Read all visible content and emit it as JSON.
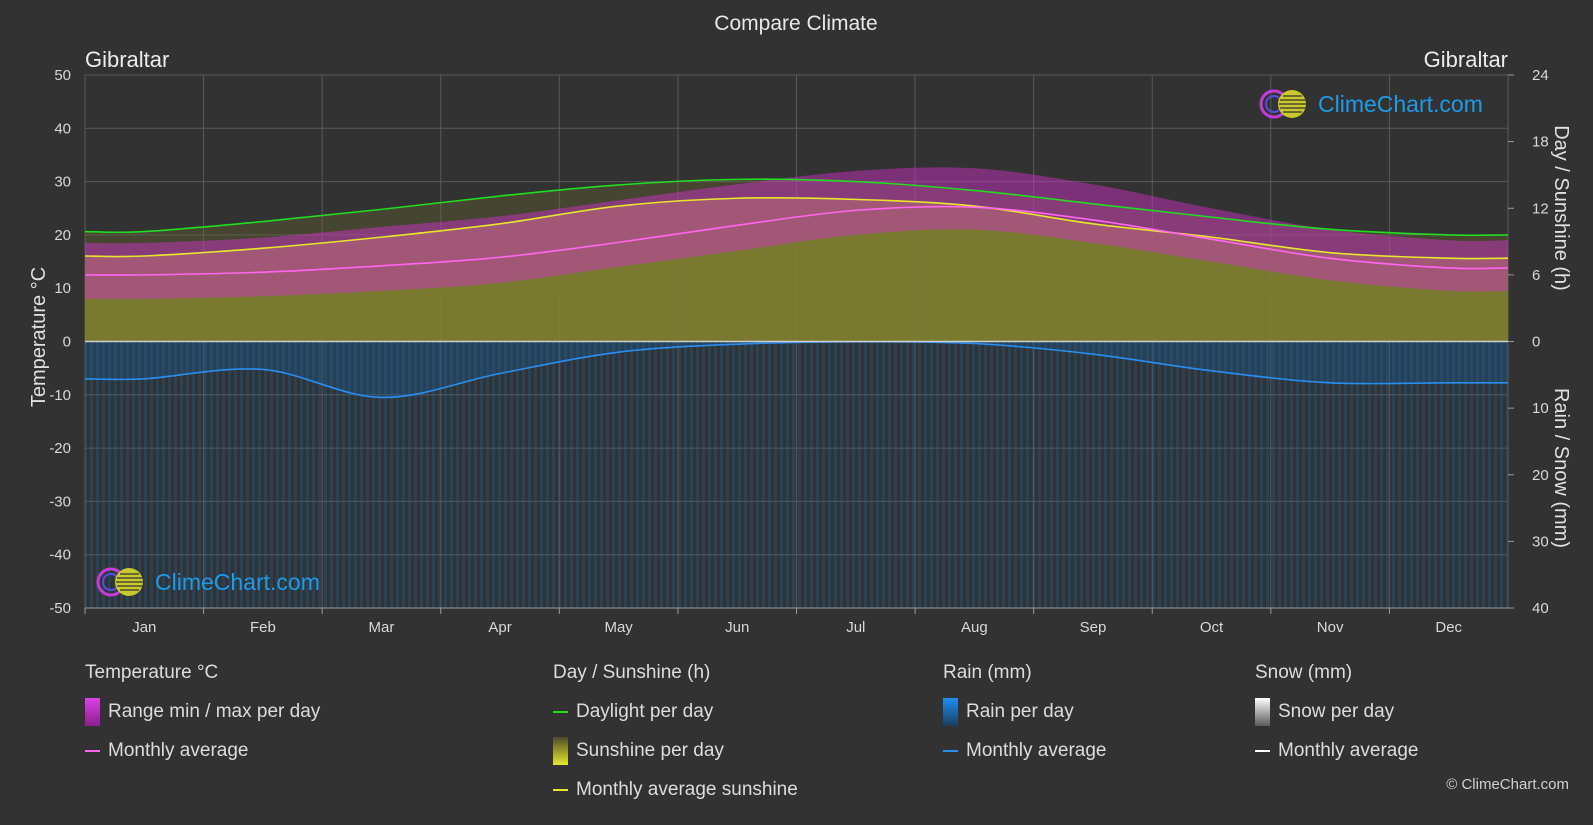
{
  "title": "Compare Climate",
  "location_left": "Gibraltar",
  "location_right": "Gibraltar",
  "copyright": "© ClimeChart.com",
  "logo_text": "ClimeChart.com",
  "colors": {
    "background": "#323232",
    "temp_range": "#d62fcf",
    "temp_avg": "#ff66f0",
    "daylight": "#22dd22",
    "sunshine_fill": "#8f8f2e",
    "sunshine_avg": "#e6e62e",
    "rain": "#1e7fd0",
    "rain_avg": "#2a8ef0",
    "snow_avg": "#ffffff"
  },
  "legend": {
    "temperature": {
      "title": "Temperature °C",
      "range_label": "Range min / max per day",
      "avg_label": "Monthly average"
    },
    "sun": {
      "title": "Day / Sunshine (h)",
      "daylight_label": "Daylight per day",
      "sunshine_label": "Sunshine per day",
      "avg_label": "Monthly average sunshine"
    },
    "rain": {
      "title": "Rain (mm)",
      "per_day_label": "Rain per day",
      "avg_label": "Monthly average"
    },
    "snow": {
      "title": "Snow (mm)",
      "per_day_label": "Snow per day",
      "avg_label": "Monthly average"
    }
  },
  "chart_data": {
    "type": "line",
    "categories": [
      "Jan",
      "Feb",
      "Mar",
      "Apr",
      "May",
      "Jun",
      "Jul",
      "Aug",
      "Sep",
      "Oct",
      "Nov",
      "Dec"
    ],
    "axes": {
      "left": {
        "label": "Temperature °C",
        "ylim": [
          -50,
          50
        ],
        "ticks": [
          50,
          40,
          30,
          20,
          10,
          0,
          -10,
          -20,
          -30,
          -40,
          -50
        ]
      },
      "right_top": {
        "label": "Day / Sunshine (h)",
        "ylim": [
          0,
          24
        ],
        "ticks": [
          24,
          18,
          12,
          6,
          0
        ]
      },
      "right_bottom": {
        "label": "Rain / Snow (mm)",
        "ylim": [
          0,
          40
        ],
        "ticks": [
          0,
          10,
          20,
          30,
          40
        ]
      }
    },
    "grid": true,
    "series": [
      {
        "name": "Daylight per day",
        "axis": "hours",
        "values": [
          9.9,
          10.8,
          11.9,
          13.1,
          14.1,
          14.6,
          14.4,
          13.6,
          12.4,
          11.2,
          10.1,
          9.6
        ]
      },
      {
        "name": "Monthly average sunshine",
        "axis": "hours",
        "values": [
          7.7,
          8.4,
          9.4,
          10.6,
          12.2,
          12.9,
          12.8,
          12.2,
          10.6,
          9.4,
          8.0,
          7.5
        ]
      },
      {
        "name": "Temperature monthly average",
        "axis": "temperature",
        "values": [
          12.5,
          13.0,
          14.2,
          15.8,
          18.6,
          21.8,
          24.6,
          25.2,
          22.8,
          19.2,
          15.6,
          13.8
        ]
      },
      {
        "name": "Temperature max per day",
        "axis": "temperature",
        "values": [
          18.5,
          19.5,
          21.5,
          23.5,
          26.5,
          29.5,
          32.0,
          32.5,
          29.5,
          25.0,
          21.0,
          19.0
        ]
      },
      {
        "name": "Temperature min per day",
        "axis": "temperature",
        "values": [
          8.0,
          8.5,
          9.5,
          11.0,
          14.0,
          17.0,
          20.0,
          21.0,
          18.5,
          15.0,
          11.5,
          9.5
        ]
      },
      {
        "name": "Rain monthly average",
        "axis": "rain",
        "values": [
          5.6,
          4.2,
          8.4,
          4.8,
          1.6,
          0.4,
          0.05,
          0.3,
          1.9,
          4.4,
          6.2,
          6.2
        ]
      },
      {
        "name": "Snow monthly average",
        "axis": "rain",
        "values": [
          0,
          0,
          0,
          0,
          0,
          0,
          0,
          0,
          0,
          0,
          0,
          0
        ]
      }
    ]
  }
}
